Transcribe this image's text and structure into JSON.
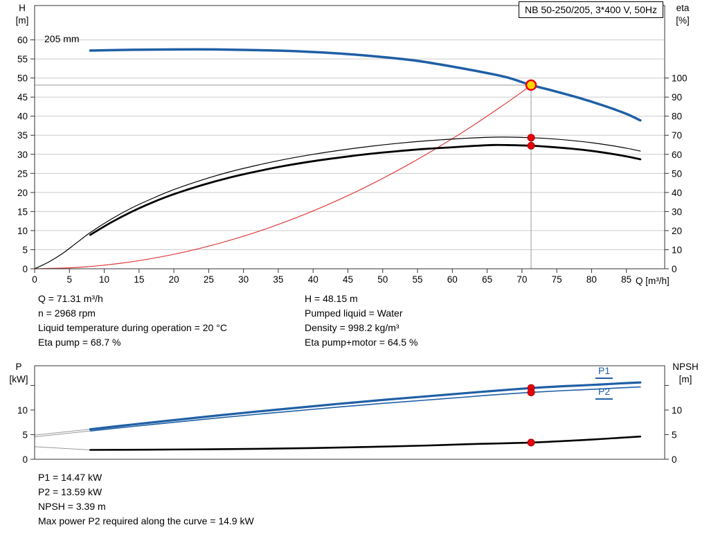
{
  "pump_title": "NB 50-250/205, 3*400 V, 50Hz",
  "impeller": "205 mm",
  "axes_labels": {
    "h": "H",
    "h_unit": "[m]",
    "eta": "eta",
    "eta_unit": "[%]",
    "q": "Q [m³/h]",
    "p": "P",
    "p_unit": "[kW]",
    "npsh": "NPSH",
    "npsh_unit": "[m]"
  },
  "curve_labels": {
    "p1": "P1",
    "p2": "P2"
  },
  "duty_info": {
    "left": [
      "Q = 71.31 m³/h",
      "n = 2968 rpm",
      "Liquid temperature during operation = 20 °C",
      "Eta pump = 68.7 %"
    ],
    "right": [
      "H = 48.15 m",
      "Pumped liquid = Water",
      "Density = 998.2 kg/m³",
      "Eta pump+motor = 64.5 %"
    ]
  },
  "power_info": [
    "P1 = 14.47 kW",
    "P2 = 13.59 kW",
    "NPSH = 3.39 m",
    "Max power P2 required along the curve = 14.9 kW"
  ],
  "colors": {
    "curve_blue": "#1f5fa5",
    "curve_black": "#000000",
    "system_red": "#e03a3a",
    "marker_red": "#e8000d",
    "duty_yellow": "#ffd500",
    "grid": "#cccccc",
    "crosshair": "#999999"
  },
  "chart_data": [
    {
      "type": "line",
      "name": "head-eta-chart",
      "title": "NB 50-250/205, 3*400 V, 50Hz",
      "grid": true,
      "x": {
        "label": "Q [m³/h]",
        "min": 0,
        "max": 90.5,
        "ticks": [
          0,
          5,
          10,
          15,
          20,
          25,
          30,
          35,
          40,
          45,
          50,
          55,
          60,
          65,
          70,
          75,
          80,
          85
        ]
      },
      "y_left": {
        "label": "H [m]",
        "min": 0,
        "max": 69,
        "ticks": [
          0,
          5,
          10,
          15,
          20,
          25,
          30,
          35,
          40,
          45,
          50,
          55,
          60
        ]
      },
      "y_right": {
        "label": "eta [%]",
        "min": 0,
        "max": 138,
        "ticks": [
          0,
          10,
          20,
          30,
          40,
          50,
          60,
          70,
          80,
          90,
          100
        ]
      },
      "crosshair": {
        "x": 71.31,
        "y": 48.15
      },
      "series": [
        {
          "name": "system-curve",
          "axis": "left",
          "color": "#e03a3a",
          "width": 1.2,
          "points": [
            [
              0,
              0
            ],
            [
              6,
              0.34
            ],
            [
              12,
              1.36
            ],
            [
              18,
              3.07
            ],
            [
              24,
              5.46
            ],
            [
              30,
              8.53
            ],
            [
              36,
              12.28
            ],
            [
              42,
              16.71
            ],
            [
              48,
              21.83
            ],
            [
              54,
              27.63
            ],
            [
              60,
              34.11
            ],
            [
              64,
              38.8
            ],
            [
              67,
              42.5
            ],
            [
              69.5,
              45.7
            ],
            [
              71.31,
              48.15
            ]
          ]
        },
        {
          "name": "eta-pump-curve",
          "axis": "right",
          "color": "#000000",
          "width": 1.2,
          "points": [
            [
              0,
              0
            ],
            [
              2,
              3.5
            ],
            [
              4,
              8
            ],
            [
              6,
              13.5
            ],
            [
              8,
              19
            ],
            [
              11,
              26
            ],
            [
              14,
              32
            ],
            [
              17,
              37
            ],
            [
              20,
              41.5
            ],
            [
              24,
              46.5
            ],
            [
              28,
              50.8
            ],
            [
              32,
              54.3
            ],
            [
              36,
              57.4
            ],
            [
              40,
              60
            ],
            [
              44,
              62.2
            ],
            [
              48,
              64.1
            ],
            [
              52,
              65.7
            ],
            [
              56,
              67
            ],
            [
              60,
              68
            ],
            [
              63,
              68.6
            ],
            [
              66,
              69
            ],
            [
              68.5,
              69
            ],
            [
              71.31,
              68.7
            ],
            [
              74,
              68.2
            ],
            [
              77,
              67.3
            ],
            [
              80,
              66.1
            ],
            [
              83,
              64.5
            ],
            [
              85,
              63.2
            ],
            [
              87,
              61.7
            ]
          ]
        },
        {
          "name": "eta-pump-motor-curve",
          "axis": "right",
          "color": "#000000",
          "width": 2.8,
          "points": [
            [
              8,
              17.8
            ],
            [
              11,
              24.3
            ],
            [
              14,
              30
            ],
            [
              17,
              34.9
            ],
            [
              20,
              39.1
            ],
            [
              24,
              43.8
            ],
            [
              28,
              47.8
            ],
            [
              32,
              51.1
            ],
            [
              36,
              54
            ],
            [
              40,
              56.4
            ],
            [
              44,
              58.4
            ],
            [
              48,
              60.2
            ],
            [
              52,
              61.6
            ],
            [
              56,
              62.8
            ],
            [
              60,
              63.7
            ],
            [
              63,
              64.4
            ],
            [
              66,
              64.9
            ],
            [
              68.5,
              64.8
            ],
            [
              71.31,
              64.5
            ],
            [
              74,
              63.9
            ],
            [
              77,
              63
            ],
            [
              80,
              61.8
            ],
            [
              83,
              60.2
            ],
            [
              85,
              58.9
            ],
            [
              87,
              57.4
            ]
          ]
        },
        {
          "name": "head-curve-205mm",
          "axis": "left",
          "color": "#1f5fa5",
          "width": 3.5,
          "points": [
            [
              8,
              57.2
            ],
            [
              14,
              57.4
            ],
            [
              20,
              57.5
            ],
            [
              26,
              57.5
            ],
            [
              32,
              57.3
            ],
            [
              38,
              57.0
            ],
            [
              44,
              56.4
            ],
            [
              50,
              55.5
            ],
            [
              55,
              54.5
            ],
            [
              60,
              53.0
            ],
            [
              65,
              51.3
            ],
            [
              68,
              50.1
            ],
            [
              71.31,
              48.15
            ],
            [
              74,
              46.9
            ],
            [
              78,
              44.9
            ],
            [
              82,
              42.6
            ],
            [
              85,
              40.6
            ],
            [
              87,
              38.9
            ]
          ]
        }
      ],
      "markers": [
        {
          "style": "dot",
          "axis": "right",
          "x": 71.31,
          "y": 68.7
        },
        {
          "style": "dot",
          "axis": "right",
          "x": 71.31,
          "y": 64.5
        },
        {
          "style": "duty",
          "axis": "left",
          "x": 71.31,
          "y": 48.15
        }
      ]
    },
    {
      "type": "line",
      "name": "power-npsh-chart",
      "grid": false,
      "x": {
        "label": "",
        "min": 0,
        "max": 90.5,
        "ticks": []
      },
      "y_left": {
        "label": "P [kW]",
        "min": 0,
        "max": 19,
        "ticks": [
          0,
          5,
          10,
          15
        ],
        "labels": [
          0,
          5,
          10
        ]
      },
      "y_right": {
        "label": "NPSH [m]",
        "min": 0,
        "max": 19,
        "ticks": [
          0,
          5,
          10,
          15
        ],
        "labels": [
          0,
          5,
          10
        ]
      },
      "series": [
        {
          "name": "p1-lead-in",
          "axis": "left",
          "color": "#999999",
          "width": 1,
          "points": [
            [
              0,
              4.9
            ],
            [
              8,
              6.1
            ]
          ]
        },
        {
          "name": "p2-lead-in",
          "axis": "left",
          "color": "#999999",
          "width": 1,
          "points": [
            [
              0,
              4.55
            ],
            [
              8,
              5.75
            ]
          ]
        },
        {
          "name": "npsh-lead-in",
          "axis": "left",
          "color": "#999999",
          "width": 1,
          "points": [
            [
              0,
              2.55
            ],
            [
              8,
              1.9
            ]
          ]
        },
        {
          "name": "p2-curve",
          "axis": "left",
          "color": "#1f5fa5",
          "width": 1.6,
          "points": [
            [
              8,
              5.75
            ],
            [
              14,
              6.65
            ],
            [
              20,
              7.5
            ],
            [
              26,
              8.35
            ],
            [
              32,
              9.15
            ],
            [
              38,
              9.9
            ],
            [
              44,
              10.65
            ],
            [
              50,
              11.35
            ],
            [
              56,
              12.0
            ],
            [
              62,
              12.65
            ],
            [
              66,
              13.1
            ],
            [
              71.31,
              13.59
            ],
            [
              76,
              13.95
            ],
            [
              80,
              14.2
            ],
            [
              84,
              14.5
            ],
            [
              87,
              14.7
            ]
          ]
        },
        {
          "name": "p1-curve",
          "axis": "left",
          "color": "#1f5fa5",
          "width": 3.2,
          "points": [
            [
              8,
              6.1
            ],
            [
              14,
              7.05
            ],
            [
              20,
              7.95
            ],
            [
              26,
              8.85
            ],
            [
              32,
              9.7
            ],
            [
              38,
              10.5
            ],
            [
              44,
              11.3
            ],
            [
              50,
              12.05
            ],
            [
              56,
              12.75
            ],
            [
              62,
              13.45
            ],
            [
              66,
              13.9
            ],
            [
              71.31,
              14.47
            ],
            [
              76,
              14.85
            ],
            [
              80,
              15.1
            ],
            [
              84,
              15.4
            ],
            [
              87,
              15.6
            ]
          ]
        },
        {
          "name": "npsh-curve",
          "axis": "left",
          "color": "#000000",
          "width": 2.6,
          "points": [
            [
              8,
              1.9
            ],
            [
              16,
              1.95
            ],
            [
              24,
              2.02
            ],
            [
              32,
              2.12
            ],
            [
              40,
              2.28
            ],
            [
              48,
              2.5
            ],
            [
              56,
              2.78
            ],
            [
              62,
              3.05
            ],
            [
              66,
              3.2
            ],
            [
              71.31,
              3.39
            ],
            [
              76,
              3.7
            ],
            [
              80,
              4.0
            ],
            [
              84,
              4.35
            ],
            [
              87,
              4.62
            ]
          ]
        }
      ],
      "markers": [
        {
          "style": "dot",
          "axis": "left",
          "x": 71.31,
          "y": 14.47
        },
        {
          "style": "dot",
          "axis": "left",
          "x": 71.31,
          "y": 13.59
        },
        {
          "style": "dot",
          "axis": "left",
          "x": 71.31,
          "y": 3.39
        }
      ]
    }
  ]
}
